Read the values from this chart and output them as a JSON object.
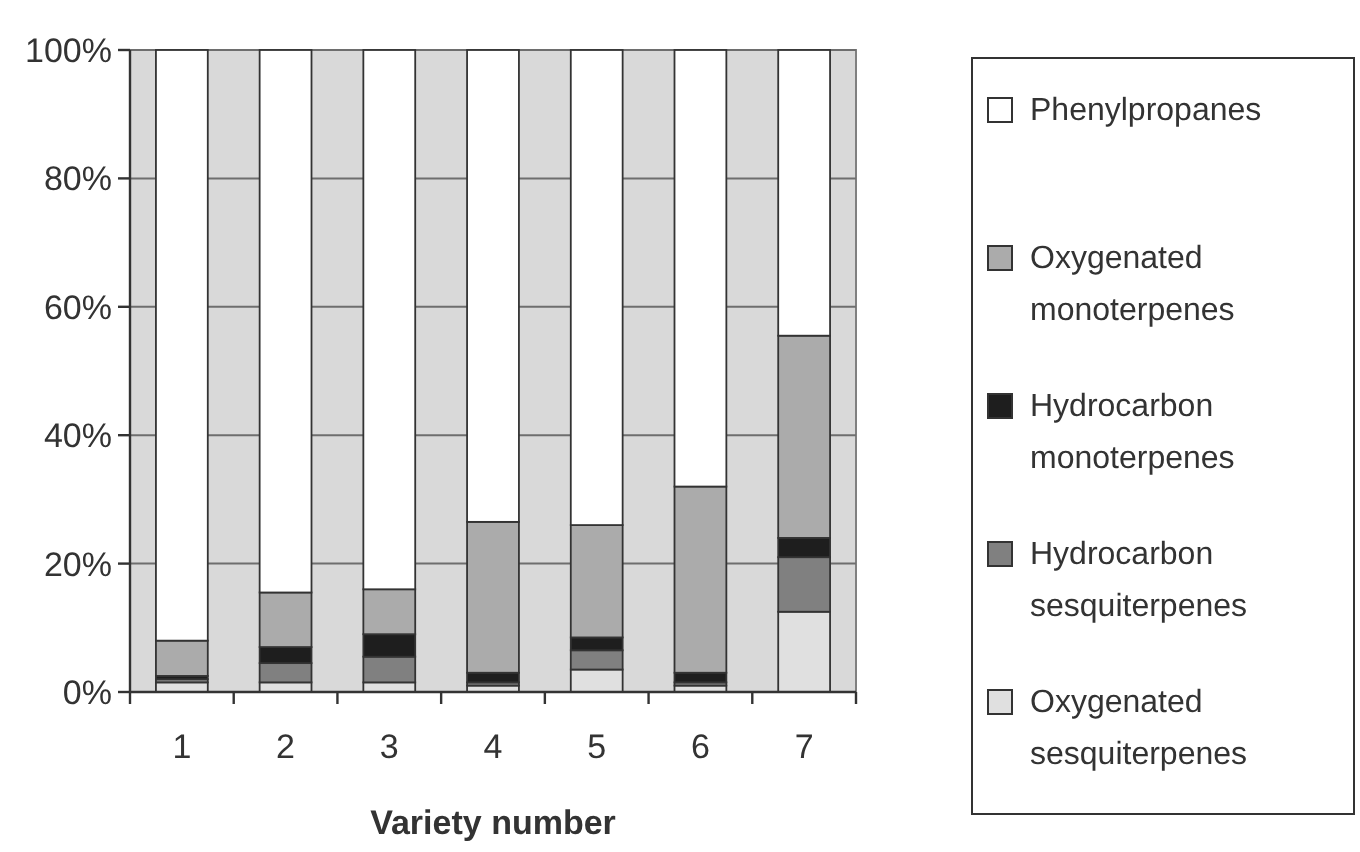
{
  "chart_data": {
    "type": "bar",
    "stacked": true,
    "xlabel": "Variety number",
    "categories": [
      "1",
      "2",
      "3",
      "4",
      "5",
      "6",
      "7"
    ],
    "series": [
      {
        "name": "Oxygenated sesquiterpenes",
        "color": "#e0e0e0",
        "values": [
          1.5,
          1.5,
          1.5,
          1,
          3.5,
          1,
          12.5
        ]
      },
      {
        "name": "Hydrocarbon sesquiterpenes",
        "color": "#808080",
        "values": [
          0.5,
          3,
          4,
          0.5,
          3,
          0.5,
          8.5
        ]
      },
      {
        "name": "Hydrocarbon monoterpenes",
        "color": "#1e1e1e",
        "values": [
          0.5,
          2.5,
          3.5,
          1.5,
          2,
          1.5,
          3
        ]
      },
      {
        "name": "Oxygenated monoterpenes",
        "color": "#ababab",
        "values": [
          5.5,
          8.5,
          7,
          23.5,
          17.5,
          29,
          31.5
        ]
      },
      {
        "name": "Phenylpropanes",
        "color": "#ffffff",
        "values": [
          92,
          84.5,
          84,
          73.5,
          74,
          68,
          44.5
        ]
      }
    ],
    "ylim": [
      0,
      100
    ],
    "yticks": [
      {
        "value": 0,
        "label": "0%"
      },
      {
        "value": 20,
        "label": "20%"
      },
      {
        "value": 40,
        "label": "40%"
      },
      {
        "value": 60,
        "label": "60%"
      },
      {
        "value": 80,
        "label": "80%"
      },
      {
        "value": 100,
        "label": "100%"
      }
    ],
    "grid": "y",
    "legend": "right"
  }
}
